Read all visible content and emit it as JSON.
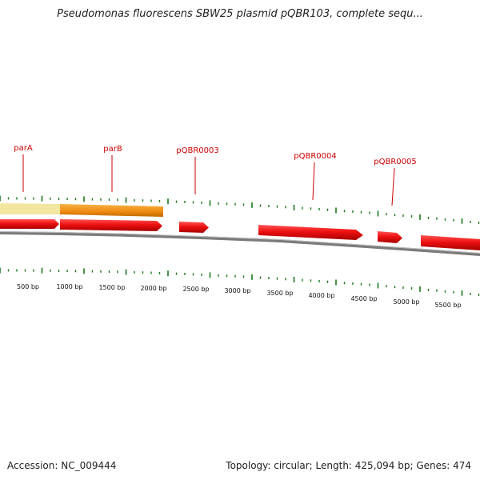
{
  "title": "Pseudomonas fluorescens SBW25 plasmid pQBR103, complete sequ...",
  "footer": {
    "accession": "Accession: NC_009444",
    "summary": "Topology: circular; Length: 425,094 bp; Genes: 474"
  },
  "colors": {
    "gene": "#ee1111",
    "gene_label": "#cc0000",
    "highlight_pale": "#f2e6a0",
    "highlight_orange": "#ef8a10",
    "tick": "#1a7a1a",
    "backbone": "#7a7a7a"
  },
  "genes": [
    {
      "name": "parA"
    },
    {
      "name": "parB"
    },
    {
      "name": "pQBR0003"
    },
    {
      "name": "pQBR0004"
    },
    {
      "name": "pQBR0005"
    }
  ],
  "bp_labels": [
    "500 bp",
    "1000 bp",
    "1500 bp",
    "2000 bp",
    "2500 bp",
    "3000 bp",
    "3500 bp",
    "4000 bp",
    "4500 bp",
    "5000 bp",
    "5500 bp"
  ]
}
